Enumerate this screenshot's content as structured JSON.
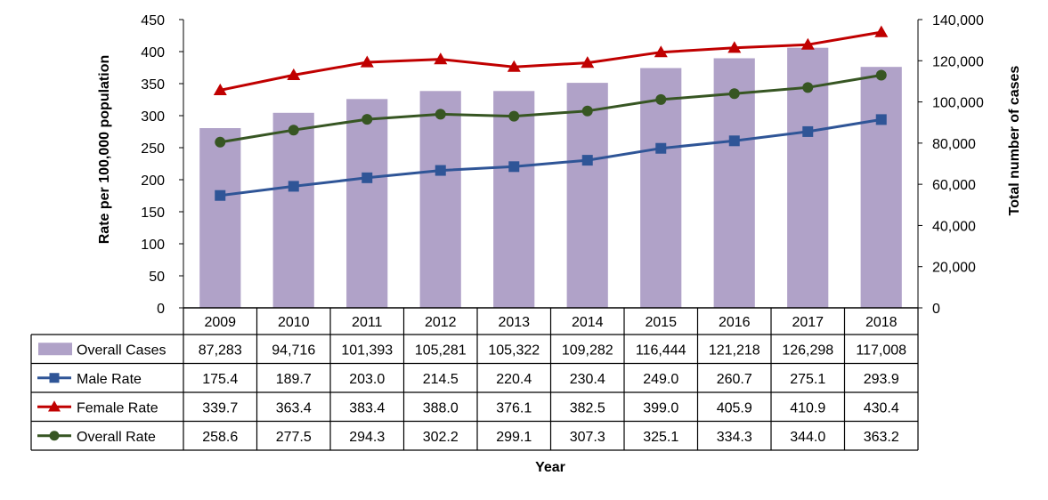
{
  "chart_data": {
    "type": "bar+line",
    "title": "",
    "categories": [
      "2009",
      "2010",
      "2011",
      "2012",
      "2013",
      "2014",
      "2015",
      "2016",
      "2017",
      "2018"
    ],
    "xlabel": "Year",
    "ylabel_left": "Rate per 100,000 population",
    "ylabel_right": "Total number of cases",
    "ylim_left": [
      0,
      450
    ],
    "ylim_right": [
      0,
      140000
    ],
    "left_ticks": [
      0,
      50,
      100,
      150,
      200,
      250,
      300,
      350,
      400,
      450
    ],
    "right_ticks": [
      0,
      20000,
      40000,
      60000,
      80000,
      100000,
      120000,
      140000
    ],
    "left_tick_labels": [
      "0",
      "50",
      "100",
      "150",
      "200",
      "250",
      "300",
      "350",
      "400",
      "450"
    ],
    "right_tick_labels": [
      "0",
      "20,000",
      "40,000",
      "60,000",
      "80,000",
      "100,000",
      "120,000",
      "140,000"
    ],
    "grid": false,
    "bars": {
      "name": "Overall Cases",
      "axis": "right",
      "color": "#B0A2C8",
      "values": [
        87283,
        94716,
        101393,
        105281,
        105322,
        109282,
        116444,
        121218,
        126298,
        117008
      ],
      "labels": [
        "87,283",
        "94,716",
        "101,393",
        "105,281",
        "105,322",
        "109,282",
        "116,444",
        "121,218",
        "126,298",
        "117,008"
      ]
    },
    "series": [
      {
        "name": "Male Rate",
        "axis": "left",
        "color": "#2F5597",
        "marker": "square",
        "values": [
          175.4,
          189.7,
          203.0,
          214.5,
          220.4,
          230.4,
          249.0,
          260.7,
          275.1,
          293.9
        ],
        "labels": [
          "175.4",
          "189.7",
          "203.0",
          "214.5",
          "220.4",
          "230.4",
          "249.0",
          "260.7",
          "275.1",
          "293.9"
        ]
      },
      {
        "name": "Female Rate",
        "axis": "left",
        "color": "#C00000",
        "marker": "triangle",
        "values": [
          339.7,
          363.4,
          383.4,
          388.0,
          376.1,
          382.5,
          399.0,
          405.9,
          410.9,
          430.4
        ],
        "labels": [
          "339.7",
          "363.4",
          "383.4",
          "388.0",
          "376.1",
          "382.5",
          "399.0",
          "405.9",
          "410.9",
          "430.4"
        ]
      },
      {
        "name": "Overall Rate",
        "axis": "left",
        "color": "#375623",
        "marker": "circle",
        "values": [
          258.6,
          277.5,
          294.3,
          302.2,
          299.1,
          307.3,
          325.1,
          334.3,
          344.0,
          363.2
        ],
        "labels": [
          "258.6",
          "277.5",
          "294.3",
          "302.2",
          "299.1",
          "307.3",
          "325.1",
          "334.3",
          "344.0",
          "363.2"
        ]
      }
    ],
    "legend_position": "data-table-left"
  }
}
